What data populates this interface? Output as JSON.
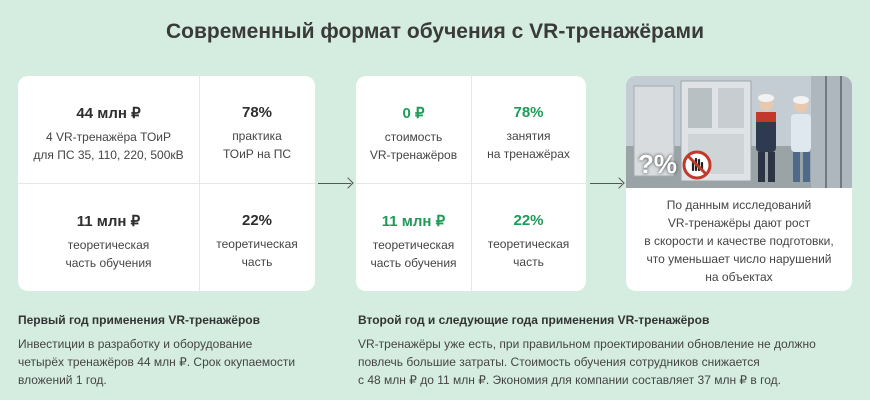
{
  "title": "Современный формат обучения с VR-тренажёрами",
  "card1": {
    "cells": [
      {
        "value": "44 млн ₽",
        "line1": "4 VR-тренажёра ТОиР",
        "line2": "для ПС 35, 110, 220, 500кВ"
      },
      {
        "value": "78%",
        "line1": "практика",
        "line2": "ТОиР на ПС"
      },
      {
        "value": "11 млн ₽",
        "line1": "теоретическая",
        "line2": "часть обучения"
      },
      {
        "value": "22%",
        "line1": "теоретическая",
        "line2": "часть"
      }
    ]
  },
  "card2": {
    "cells": [
      {
        "value": "0 ₽",
        "line1": "стоимость",
        "line2": "VR-тренажёров"
      },
      {
        "value": "78%",
        "line1": "занятия",
        "line2": "на тренажёрах"
      },
      {
        "value": "11 млн ₽",
        "line1": "теоретическая",
        "line2": "часть обучения"
      },
      {
        "value": "22%",
        "line1": "теоретическая",
        "line2": "часть"
      }
    ]
  },
  "card3": {
    "badge": "?%",
    "lines": [
      "По данным исследований",
      "VR-тренажёры дают рост",
      "в скорости и качестве подготовки,",
      "что уменьшает число нарушений",
      "на объектах"
    ]
  },
  "section1": {
    "heading": "Первый год применения VR-тренажёров",
    "lines": [
      "Инвестиции в разработку и оборудование",
      "четырёх тренажёров 44 млн ₽. Срок окупаемости",
      "вложений 1 год."
    ]
  },
  "section2": {
    "heading": "Второй год и следующие года применения VR-тренажёров",
    "lines": [
      "VR-тренажёры уже есть, при правильном проектировании обновление не должно",
      "повлечь большие затраты. Стоимость обучения сотрудников снижается",
      "с 48 млн ₽ до 11 млн ₽. Экономия для компании составляет 37 млн ₽ в год."
    ]
  },
  "colors": {
    "accent_green": "#1f9a58",
    "background": "#d5ede1"
  }
}
